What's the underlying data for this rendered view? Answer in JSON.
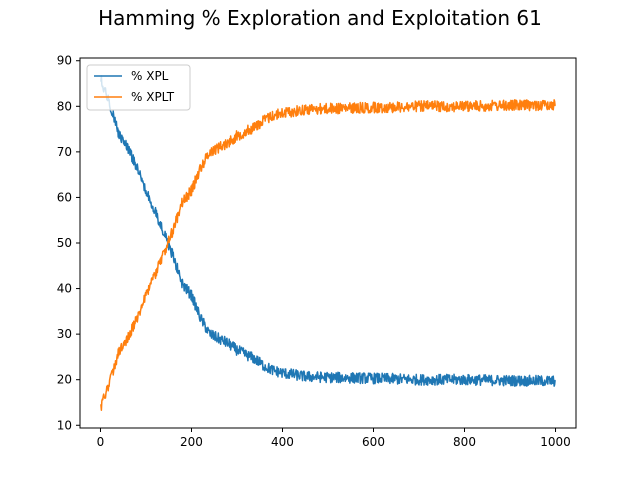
{
  "chart_data": {
    "type": "line",
    "title": "Hamming % Exploration and Exploitation 61",
    "xlabel": "",
    "ylabel": "",
    "xlim": [
      -45,
      1045
    ],
    "ylim": [
      9.4,
      90.6
    ],
    "x_ticks": [
      0,
      200,
      400,
      600,
      800,
      1000
    ],
    "y_ticks": [
      10,
      20,
      30,
      40,
      50,
      60,
      70,
      80,
      90
    ],
    "grid": false,
    "legend": {
      "placement": "top-left"
    },
    "series": [
      {
        "name": "% XPL",
        "color": "#1f77b4",
        "noise": 1.0,
        "points": [
          [
            0,
            86
          ],
          [
            10,
            83.5
          ],
          [
            20,
            80.5
          ],
          [
            40,
            74
          ],
          [
            60,
            71
          ],
          [
            80,
            66.5
          ],
          [
            100,
            61.5
          ],
          [
            120,
            57
          ],
          [
            140,
            52
          ],
          [
            160,
            47
          ],
          [
            180,
            41
          ],
          [
            200,
            38.5
          ],
          [
            220,
            33.5
          ],
          [
            240,
            30
          ],
          [
            260,
            29
          ],
          [
            280,
            28
          ],
          [
            300,
            26.5
          ],
          [
            320,
            25.5
          ],
          [
            340,
            24.5
          ],
          [
            360,
            23
          ],
          [
            380,
            22
          ],
          [
            400,
            21.5
          ],
          [
            450,
            20.7
          ],
          [
            500,
            20.5
          ],
          [
            600,
            20.3
          ],
          [
            700,
            20
          ],
          [
            800,
            20
          ],
          [
            900,
            19.8
          ],
          [
            1000,
            19.7
          ]
        ]
      },
      {
        "name": "% XPLT",
        "color": "#ff7f0e",
        "noise": 1.0,
        "points": [
          [
            0,
            14
          ],
          [
            10,
            16.5
          ],
          [
            20,
            19.5
          ],
          [
            40,
            26
          ],
          [
            60,
            29
          ],
          [
            80,
            33.5
          ],
          [
            100,
            38.5
          ],
          [
            120,
            43
          ],
          [
            140,
            48
          ],
          [
            160,
            53
          ],
          [
            180,
            59
          ],
          [
            200,
            61.5
          ],
          [
            220,
            66.5
          ],
          [
            240,
            70
          ],
          [
            260,
            71
          ],
          [
            280,
            72
          ],
          [
            300,
            73.5
          ],
          [
            320,
            74.5
          ],
          [
            340,
            75.5
          ],
          [
            360,
            77
          ],
          [
            380,
            78
          ],
          [
            400,
            78.5
          ],
          [
            450,
            79.3
          ],
          [
            500,
            79.5
          ],
          [
            600,
            79.7
          ],
          [
            700,
            80
          ],
          [
            800,
            80
          ],
          [
            900,
            80.2
          ],
          [
            1000,
            80.3
          ]
        ]
      }
    ]
  }
}
